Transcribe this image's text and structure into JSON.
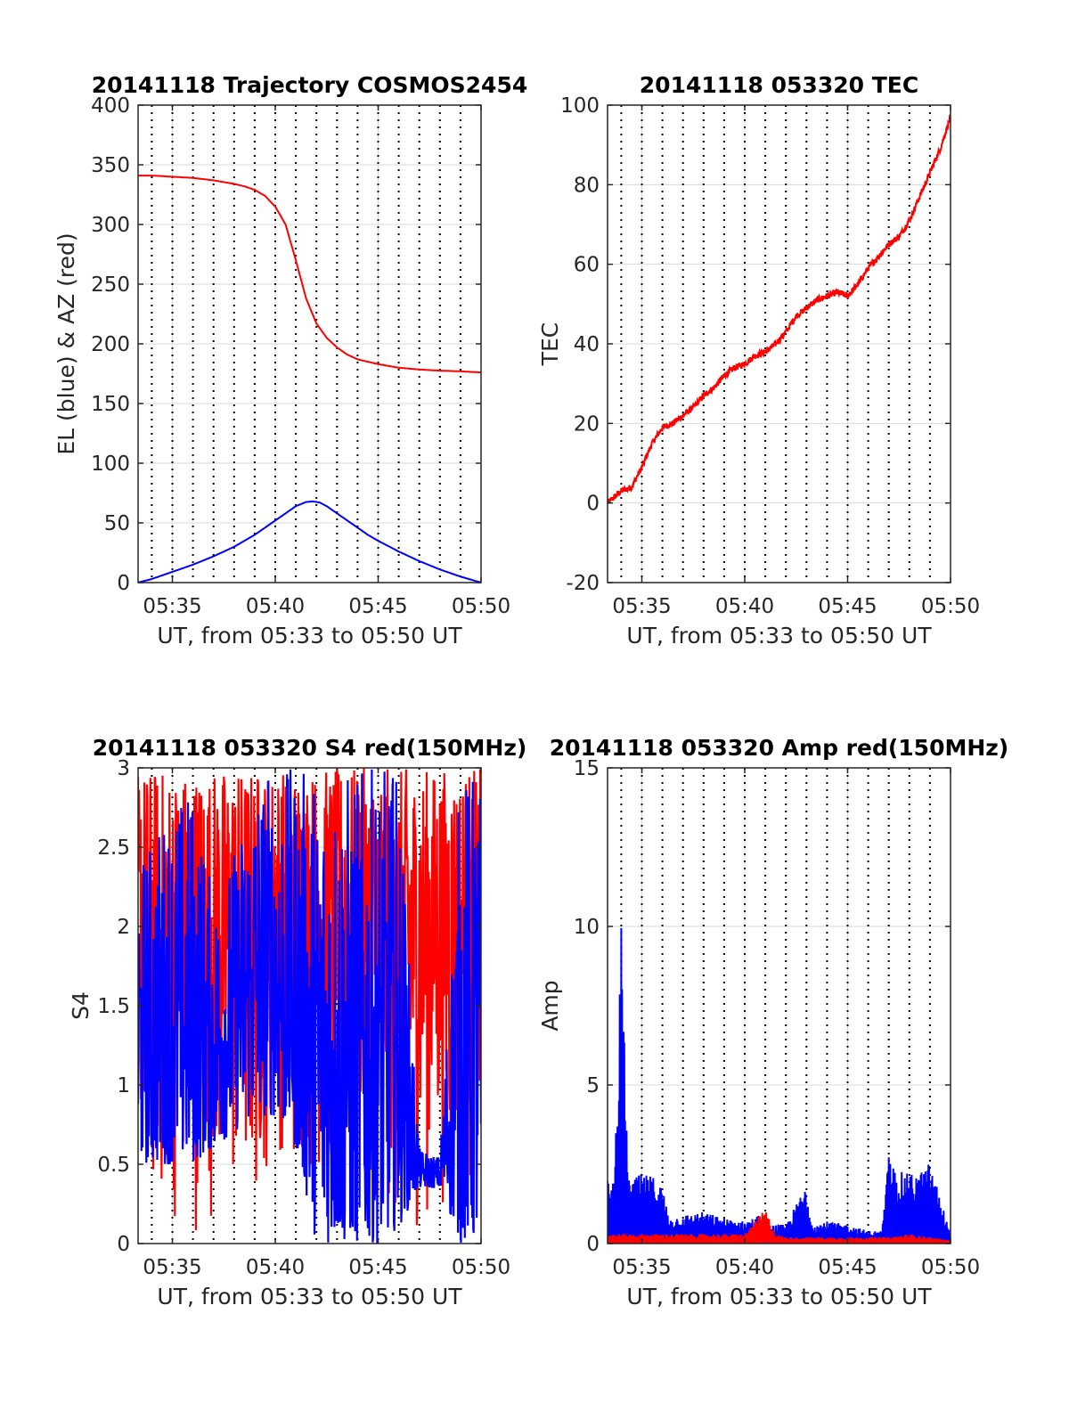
{
  "figure": {
    "background": "#ffffff"
  },
  "colors": {
    "elevation": "#0000ff",
    "azimuth": "#ff0000",
    "grid": "#d9d9d9",
    "axis": "#262626",
    "minute_lines": "#000000"
  },
  "chart_data": [
    {
      "id": "trajectory",
      "type": "line",
      "title": "20141118 Trajectory COSMOS2454",
      "xlabel": "UT, from 05:33 to 05:50 UT",
      "ylabel": "EL (blue) & AZ (red)",
      "xlim": [
        "05:33:20",
        "05:50:00"
      ],
      "ylim": [
        0,
        400
      ],
      "x_ticks": [
        "05:35",
        "05:40",
        "05:45",
        "05:50"
      ],
      "y_ticks": [
        "0",
        "50",
        "100",
        "150",
        "200",
        "250",
        "300",
        "350",
        "400"
      ],
      "minute_lines": true,
      "grid": true,
      "series": [
        {
          "label": "AZ",
          "color": "#ff0000",
          "x": [
            "05:33:20",
            "05:34:00",
            "05:35:00",
            "05:36:00",
            "05:37:00",
            "05:38:00",
            "05:38:30",
            "05:39:00",
            "05:39:30",
            "05:40:00",
            "05:40:30",
            "05:41:00",
            "05:41:30",
            "05:42:00",
            "05:42:30",
            "05:43:00",
            "05:43:30",
            "05:44:00",
            "05:45:00",
            "05:46:00",
            "05:47:00",
            "05:48:00",
            "05:49:00",
            "05:50:00"
          ],
          "y": [
            341,
            341,
            340,
            339,
            337,
            334,
            332,
            329,
            324,
            315,
            300,
            270,
            238,
            217,
            205,
            197,
            191,
            187,
            183,
            180,
            178.5,
            177.5,
            177,
            176
          ]
        },
        {
          "label": "EL",
          "color": "#0000ff",
          "x": [
            "05:33:20",
            "05:34:00",
            "05:35:00",
            "05:36:00",
            "05:37:00",
            "05:38:00",
            "05:39:00",
            "05:39:30",
            "05:40:00",
            "05:40:30",
            "05:41:00",
            "05:41:30",
            "05:41:50",
            "05:42:10",
            "05:42:30",
            "05:43:00",
            "05:43:30",
            "05:44:00",
            "05:44:30",
            "05:45:00",
            "05:46:00",
            "05:47:00",
            "05:48:00",
            "05:49:00",
            "05:50:00"
          ],
          "y": [
            0,
            3,
            9,
            15,
            22,
            30,
            40,
            46,
            52,
            58,
            64,
            67.5,
            68,
            67,
            64,
            58,
            52,
            46,
            40,
            35,
            26,
            18,
            11,
            5,
            0
          ]
        }
      ]
    },
    {
      "id": "tec",
      "type": "line",
      "title": "20141118 053320 TEC",
      "xlabel": "UT, from 05:33 to 05:50 UT",
      "ylabel": "TEC",
      "xlim": [
        "05:33:20",
        "05:50:00"
      ],
      "ylim": [
        -20,
        100
      ],
      "x_ticks": [
        "05:35",
        "05:40",
        "05:45",
        "05:50"
      ],
      "y_ticks": [
        "-20",
        "0",
        "20",
        "40",
        "60",
        "80",
        "100"
      ],
      "minute_lines": true,
      "grid": true,
      "series": [
        {
          "label": "TEC",
          "color": "#ff0000",
          "x": [
            "05:33:20",
            "05:34:00",
            "05:34:30",
            "05:35:00",
            "05:35:30",
            "05:36:00",
            "05:36:30",
            "05:37:00",
            "05:37:30",
            "05:38:00",
            "05:38:30",
            "05:39:00",
            "05:39:30",
            "05:40:00",
            "05:40:30",
            "05:41:00",
            "05:41:30",
            "05:42:00",
            "05:42:30",
            "05:43:00",
            "05:43:30",
            "05:44:00",
            "05:44:30",
            "05:45:00",
            "05:45:30",
            "05:46:00",
            "05:46:30",
            "05:47:00",
            "05:47:30",
            "05:48:00",
            "05:48:30",
            "05:49:00",
            "05:49:30",
            "05:50:00"
          ],
          "y": [
            0,
            3,
            4,
            9,
            15,
            19,
            20,
            22,
            24,
            27,
            29,
            32,
            34,
            35,
            37,
            38,
            40,
            43,
            47,
            49,
            51,
            52,
            53,
            52,
            55,
            59,
            62,
            65,
            67,
            71,
            77,
            83,
            89,
            97
          ]
        }
      ]
    },
    {
      "id": "s4",
      "type": "line",
      "title": "20141118 053320 S4 red(150MHz)",
      "xlabel": "UT, from 05:33 to 05:50 UT",
      "ylabel": "S4",
      "xlim": [
        "05:33:20",
        "05:50:00"
      ],
      "ylim": [
        0,
        3
      ],
      "x_ticks": [
        "05:35",
        "05:40",
        "05:45",
        "05:50"
      ],
      "y_ticks": [
        "0",
        "0.5",
        "1",
        "1.5",
        "2",
        "2.5",
        "3"
      ],
      "minute_lines": true,
      "grid": true,
      "series": [
        {
          "label": "red",
          "color": "#ff0000",
          "x": [
            "05:33:20",
            "05:34:00",
            "05:35:00",
            "05:36:00",
            "05:37:00",
            "05:38:00",
            "05:39:00",
            "05:40:00",
            "05:41:00",
            "05:42:00",
            "05:43:00",
            "05:44:00",
            "05:45:00",
            "05:46:00",
            "05:47:00",
            "05:48:00",
            "05:49:00",
            "05:50:00"
          ],
          "y_range": [
            [
              0.6,
              3
            ],
            [
              0,
              3
            ],
            [
              0,
              3
            ],
            [
              0,
              3
            ],
            [
              0.1,
              3
            ],
            [
              0,
              3
            ],
            [
              0,
              3
            ],
            [
              0.6,
              3
            ],
            [
              0.2,
              3
            ],
            [
              0.3,
              3
            ],
            [
              0.3,
              3
            ],
            [
              0.5,
              3
            ],
            [
              0,
              3
            ],
            [
              0,
              3
            ],
            [
              0,
              3
            ],
            [
              0.2,
              3
            ],
            [
              0,
              3
            ],
            [
              0,
              3
            ]
          ]
        },
        {
          "label": "blue",
          "color": "#0000ff",
          "x": [
            "05:33:20",
            "05:34:00",
            "05:35:00",
            "05:36:00",
            "05:37:00",
            "05:38:00",
            "05:39:00",
            "05:40:00",
            "05:41:00",
            "05:42:00",
            "05:43:00",
            "05:44:00",
            "05:45:00",
            "05:46:00",
            "05:47:00",
            "05:48:00",
            "05:49:00",
            "05:50:00"
          ],
          "y_range": [
            [
              0.5,
              2.4
            ],
            [
              0.5,
              2.6
            ],
            [
              0.5,
              2.8
            ],
            [
              0.5,
              2.9
            ],
            [
              0.6,
              2.2
            ],
            [
              0.7,
              2.5
            ],
            [
              0.8,
              3
            ],
            [
              0.8,
              3
            ],
            [
              0.6,
              3
            ],
            [
              0,
              3
            ],
            [
              0,
              3
            ],
            [
              0,
              3
            ],
            [
              0,
              3
            ],
            [
              0.1,
              3
            ],
            [
              0.35,
              0.6
            ],
            [
              0.35,
              0.55
            ],
            [
              0,
              3
            ],
            [
              0,
              3
            ]
          ]
        }
      ]
    },
    {
      "id": "amp",
      "type": "line",
      "title": "20141118 053320 Amp red(150MHz)",
      "xlabel": "UT, from 05:33 to 05:50 UT",
      "ylabel": "Amp",
      "xlim": [
        "05:33:20",
        "05:50:00"
      ],
      "ylim": [
        0,
        15
      ],
      "x_ticks": [
        "05:35",
        "05:40",
        "05:45",
        "05:50"
      ],
      "y_ticks": [
        "0",
        "5",
        "10",
        "15"
      ],
      "minute_lines": true,
      "grid": true,
      "series": [
        {
          "label": "blue",
          "color": "#0000ff",
          "x": [
            "05:33:20",
            "05:33:40",
            "05:34:00",
            "05:34:20",
            "05:35:00",
            "05:35:40",
            "05:36:00",
            "05:36:20",
            "05:37:00",
            "05:38:00",
            "05:39:00",
            "05:40:00",
            "05:40:40",
            "05:41:00",
            "05:42:00",
            "05:43:00",
            "05:43:10",
            "05:43:20",
            "05:44:00",
            "05:45:00",
            "05:46:00",
            "05:46:40",
            "05:47:00",
            "05:47:20",
            "05:48:00",
            "05:48:40",
            "05:49:00",
            "05:50:00"
          ],
          "y_max": [
            2.0,
            2.1,
            10.0,
            2.0,
            2.2,
            2.1,
            1.8,
            0.8,
            0.9,
            1.0,
            0.8,
            0.7,
            0.9,
            0.6,
            0.6,
            1.9,
            1.0,
            0.6,
            0.7,
            0.6,
            0.4,
            0.4,
            2.8,
            2.3,
            2.2,
            2.3,
            2.6,
            0.3
          ],
          "y_min": [
            0,
            0,
            0,
            0,
            0,
            0,
            0,
            0,
            0,
            0,
            0,
            0,
            0,
            0,
            0,
            0,
            0,
            0,
            0,
            0,
            0,
            0,
            0,
            0,
            0,
            0,
            0,
            0
          ]
        },
        {
          "label": "red",
          "color": "#ff0000",
          "x": [
            "05:33:20",
            "05:40:00",
            "05:41:00",
            "05:41:30",
            "05:42:00",
            "05:47:00",
            "05:48:00",
            "05:50:00"
          ],
          "y_max": [
            0.3,
            0.3,
            1.1,
            0.3,
            0.2,
            0.2,
            0.3,
            0.1
          ],
          "y_min": [
            0,
            0,
            0,
            0,
            0,
            0,
            0,
            0
          ]
        }
      ]
    }
  ]
}
